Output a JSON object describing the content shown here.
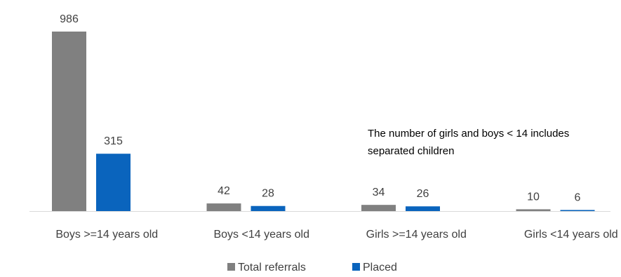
{
  "chart_data": {
    "type": "bar",
    "categories": [
      "Boys >=14 years old",
      "Boys <14 years old",
      "Girls >=14 years old",
      "Girls <14 years old"
    ],
    "series": [
      {
        "name": "Total referrals",
        "values": [
          986,
          42,
          34,
          10
        ],
        "color": "#808080"
      },
      {
        "name": "Placed",
        "values": [
          315,
          28,
          26,
          6
        ],
        "color": "#0a64bd"
      }
    ],
    "annotation": "The number of girls and boys < 14 includes separated children",
    "ylim": [
      0,
      986
    ],
    "grid": false,
    "legend_position": "bottom"
  }
}
